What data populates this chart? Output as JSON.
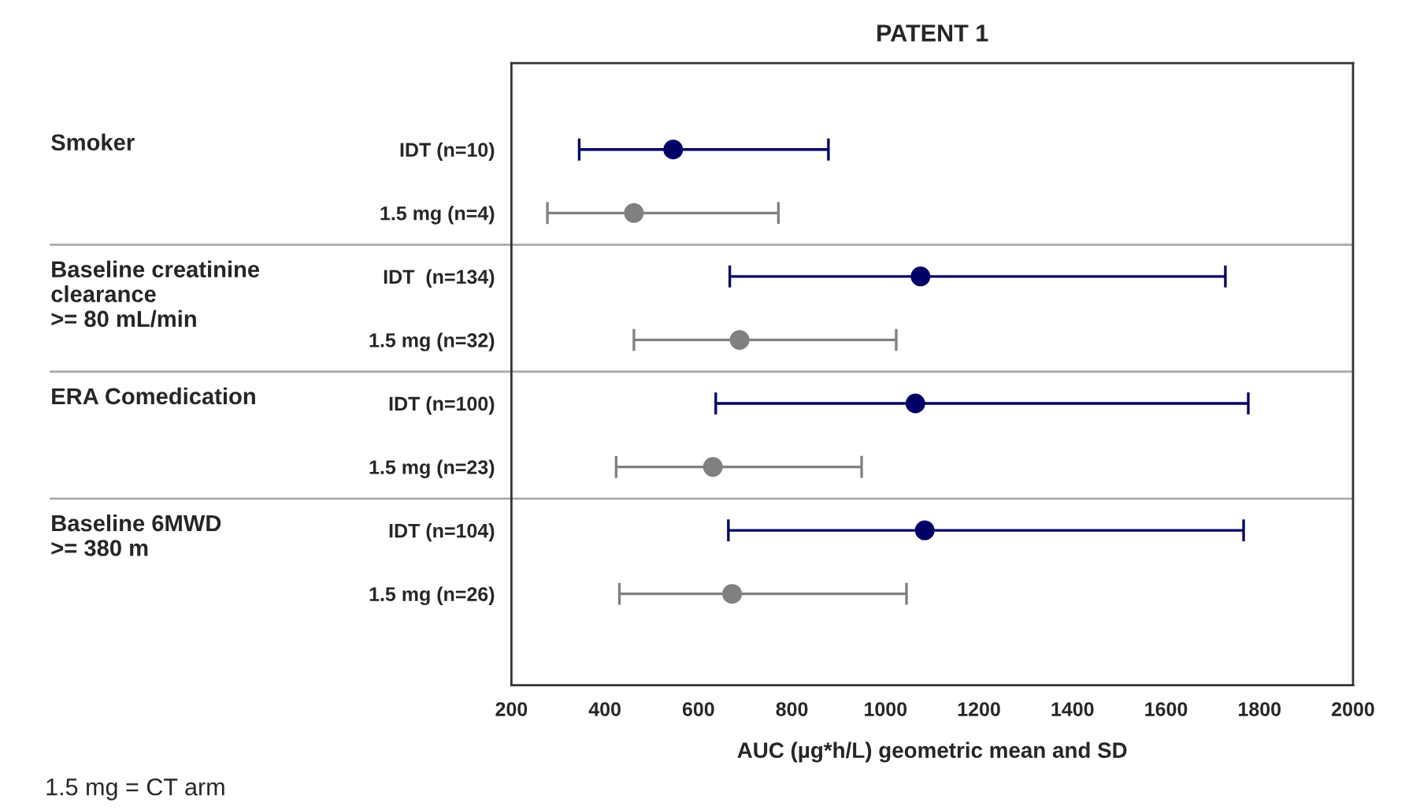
{
  "chart_data": {
    "type": "scatter",
    "orientation": "horizontal",
    "title": "PATENT 1",
    "xlabel": "AUC (µg*h/L) geometric mean and SD",
    "categories": [
      "IDT (n=10)",
      "1.5 mg (n=4)",
      "IDT  (n=134)",
      "1.5 mg (n=32)",
      "IDT (n=100)",
      "1.5 mg (n=23)",
      "IDT (n=104)",
      "1.5 mg (n=26)"
    ],
    "series": [
      {
        "color": "#000066",
        "values": [
          546,
          null,
          1075,
          null,
          1064,
          null,
          1084,
          null
        ],
        "errors": [
          [
            345,
            878
          ],
          null,
          [
            667,
            1727
          ],
          null,
          [
            637,
            1776
          ],
          null,
          [
            664,
            1766
          ],
          null
        ]
      },
      {
        "color": "#808080",
        "values": [
          null,
          462,
          null,
          688,
          null,
          631,
          null,
          672
        ],
        "errors": [
          null,
          [
            277,
            771
          ],
          null,
          [
            462,
            1023
          ],
          null,
          [
            424,
            949
          ],
          null,
          [
            431,
            1045
          ]
        ]
      }
    ],
    "xlim": [
      200,
      2000
    ],
    "xticks": [
      200,
      400,
      600,
      800,
      1000,
      1200,
      1400,
      1600,
      1800,
      2000
    ],
    "grid": false,
    "marker": "circle",
    "annotations": [
      "Smoker",
      "Baseline creatinine\nclearance\n>= 80 mL/min",
      "ERA Comedication",
      "Baseline 6MWD\n>= 380 m",
      "1.5 mg = CT arm"
    ]
  }
}
